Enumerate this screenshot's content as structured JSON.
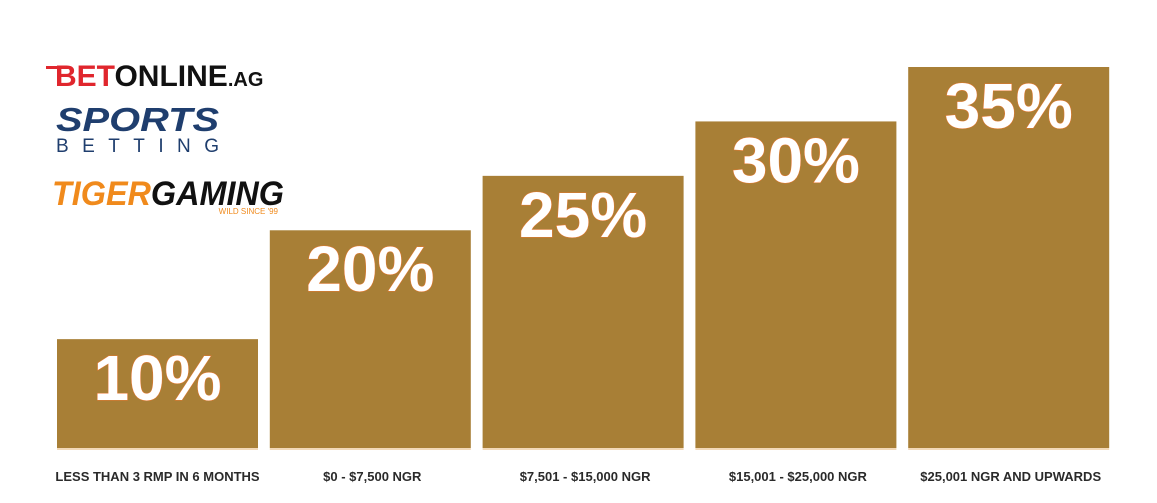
{
  "logos": {
    "betonline": [
      "BET",
      "ONLINE",
      ".AG"
    ],
    "sports": [
      "SPORTS",
      "BETTING"
    ],
    "tiger": [
      "TIGER",
      "GAMING"
    ],
    "tiger_tagline": "WILD SINCE '99"
  },
  "chart_data": {
    "type": "bar",
    "categories": [
      "LESS THAN 3 RMP IN 6 MONTHS",
      "$0 - $7,500 NGR",
      "$7,501 - $15,000 NGR",
      "$15,001 - $25,000 NGR",
      "$25,001 NGR AND UPWARDS"
    ],
    "values": [
      10,
      20,
      25,
      30,
      35
    ],
    "value_labels": [
      "10%",
      "20%",
      "25%",
      "30%",
      "35%"
    ],
    "color": "#a87f36"
  }
}
